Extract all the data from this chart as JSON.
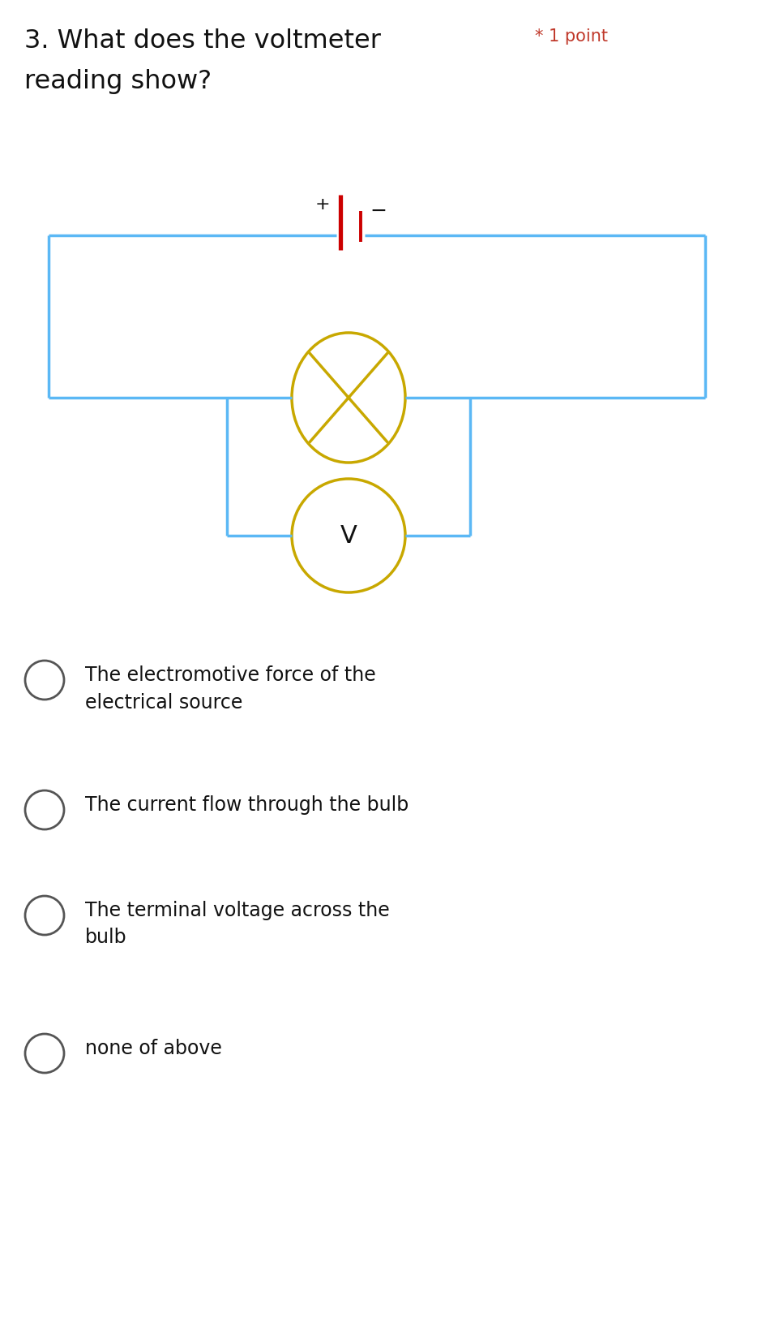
{
  "title_line1": "3. What does the voltmeter",
  "title_line2": "reading show?",
  "point_label": "* 1 point",
  "bg_color": "#ffffff",
  "circuit_color": "#5bb8f5",
  "battery_color": "#cc0000",
  "bulb_color": "#c8a800",
  "voltmeter_color": "#c8a800",
  "circuit_lw": 2.5,
  "battery_lw": 2.8,
  "bulb_lw": 2.5,
  "voltmeter_lw": 2.5,
  "options": [
    "The electromotive force of the\nelectrical source",
    "The current flow through the bulb",
    "The terminal voltage across the\nbulb",
    "none of above"
  ],
  "option_font_size": 17,
  "title_font_size": 23,
  "point_font_size": 15,
  "point_color": "#c0392b",
  "title_color": "#111111",
  "option_color": "#111111",
  "radio_color": "#555555"
}
